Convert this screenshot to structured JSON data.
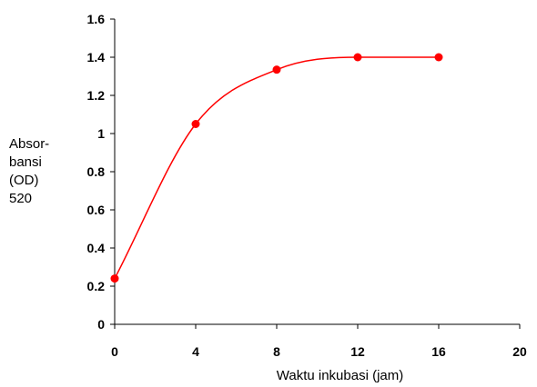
{
  "chart_data": {
    "type": "line",
    "title": "",
    "xlabel": "Waktu inkubasi (jam)",
    "ylabel_lines": [
      "Absor-",
      "bansi",
      "(OD)",
      "520"
    ],
    "xlim": [
      0,
      20
    ],
    "ylim": [
      0,
      1.6
    ],
    "x_ticks": [
      0,
      4,
      8,
      12,
      16,
      20
    ],
    "y_ticks": [
      0,
      0.2,
      0.4,
      0.6,
      0.8,
      1,
      1.2,
      1.4,
      1.6
    ],
    "x_tick_labels": [
      "0",
      "4",
      "8",
      "12",
      "16",
      "20"
    ],
    "y_tick_labels": [
      "0",
      "0.2",
      "0.4",
      "0.6",
      "0.8",
      "1",
      "1.2",
      "1.4",
      "1.6"
    ],
    "grid": false,
    "legend": "none",
    "series": [
      {
        "x": [
          0,
          4,
          8,
          12,
          16
        ],
        "values": [
          0.24,
          1.05,
          1.335,
          1.4,
          1.4
        ],
        "color": "#ff0000",
        "marker": "circle",
        "smooth": true
      }
    ]
  }
}
